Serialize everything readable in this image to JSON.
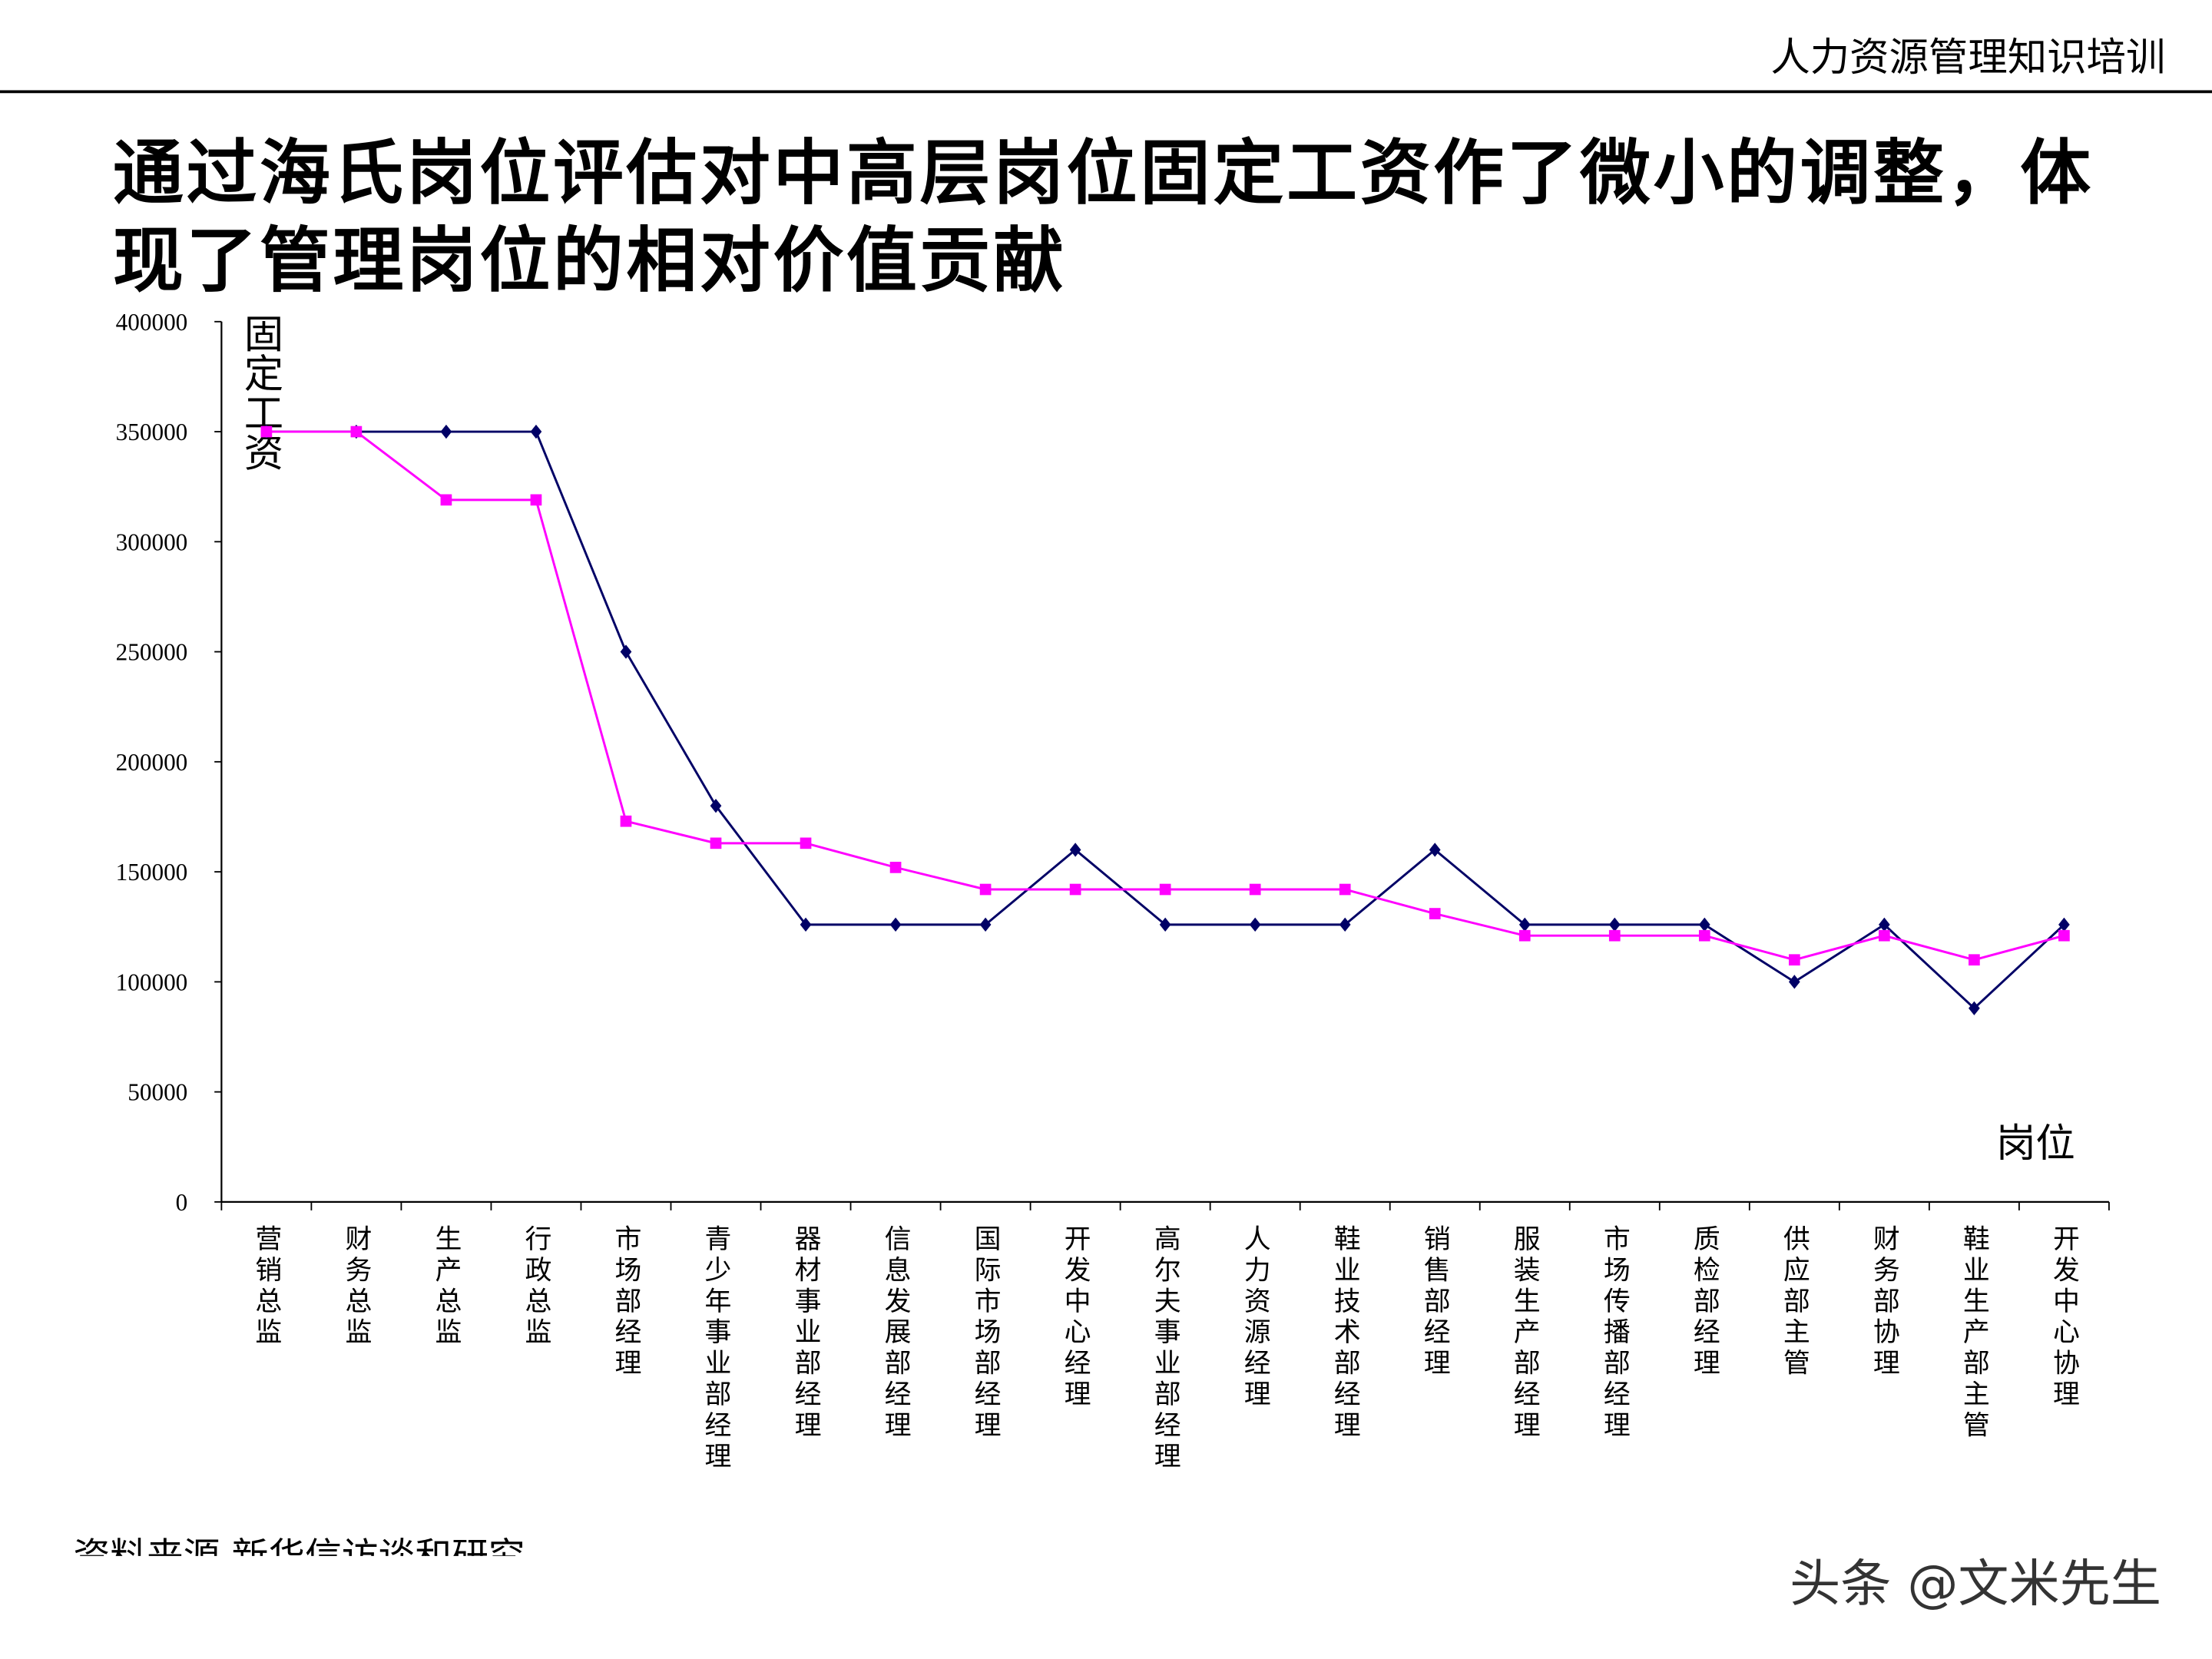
{
  "header": "人力资源管理知识培训",
  "title": "通过海氏岗位评估对中高层岗位固定工资作了微小的调整，体现了管理岗位的相对价值贡献",
  "source": "资料来源 新华信访谈和研究",
  "watermark": "头条 @文米先生",
  "chart_data": {
    "type": "line",
    "y_label": "固定工资",
    "x_label": "岗位",
    "categories": [
      "营销总监",
      "财务总监",
      "生产总监",
      "行政总监",
      "市场部经理",
      "青少年事业部经理",
      "器材事业部经理",
      "信息发展部经理",
      "国际市场部经理",
      "开发中心经理",
      "高尔夫事业部经理",
      "人力资源经理",
      "鞋业技术部经理",
      "销售部经理",
      "服装生产部经理",
      "市场传播部经理",
      "质检部经理",
      "供应部主管",
      "财务部协理",
      "鞋业生产部主管",
      "开发中心协理"
    ],
    "series": [
      {
        "color": "#000066",
        "marker": "diamond",
        "values": [
          350000,
          350000,
          350000,
          350000,
          250000,
          180000,
          126000,
          126000,
          126000,
          160000,
          126000,
          126000,
          126000,
          160000,
          126000,
          126000,
          126000,
          100000,
          126000,
          88000,
          126000
        ]
      },
      {
        "color": "#ff00ff",
        "marker": "square",
        "values": [
          350000,
          350000,
          319000,
          319000,
          173000,
          163000,
          163000,
          152000,
          142000,
          142000,
          142000,
          142000,
          142000,
          131000,
          121000,
          121000,
          121000,
          110000,
          121000,
          110000,
          121000
        ]
      }
    ],
    "ylim": [
      0,
      400000
    ],
    "yticks": [
      0,
      50000,
      100000,
      150000,
      200000,
      250000,
      300000,
      350000,
      400000
    ]
  }
}
